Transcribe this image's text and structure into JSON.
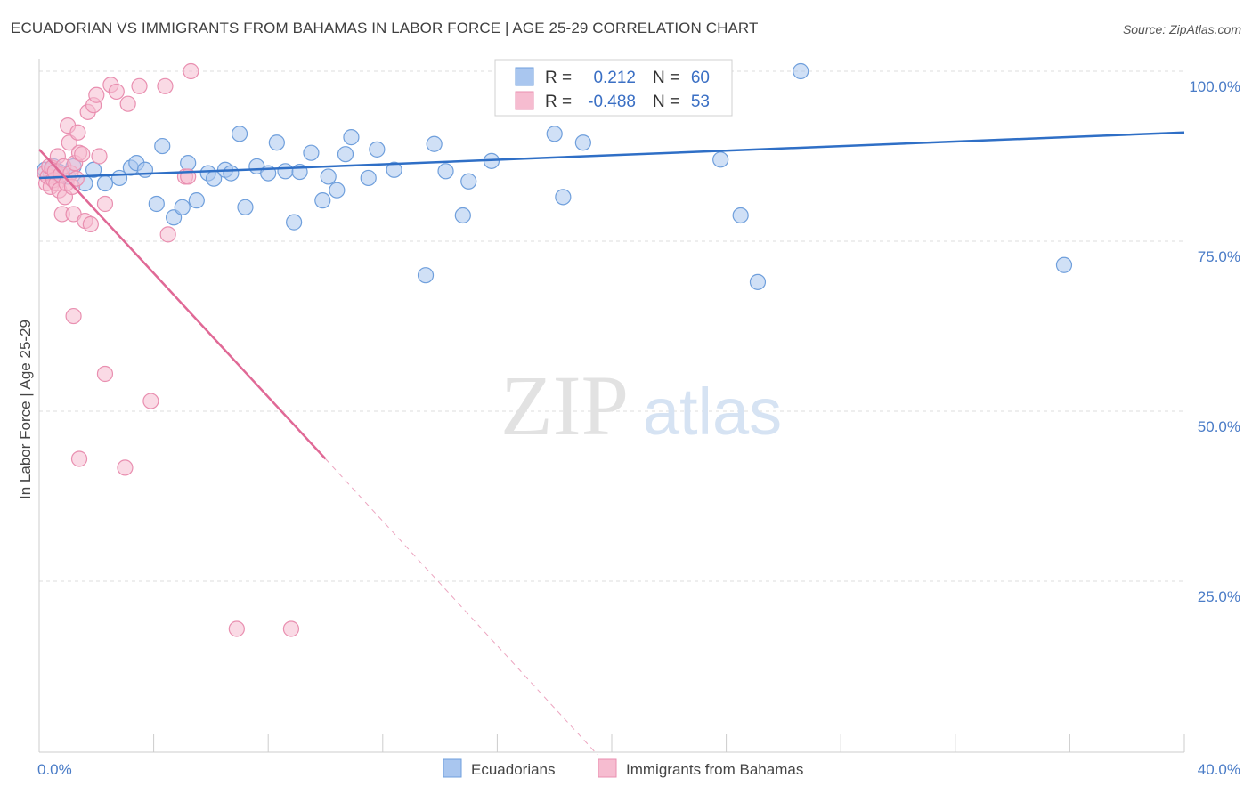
{
  "header": {
    "title": "ECUADORIAN VS IMMIGRANTS FROM BAHAMAS IN LABOR FORCE | AGE 25-29 CORRELATION CHART",
    "source": "Source: ZipAtlas.com"
  },
  "watermark": {
    "zip": "ZIP",
    "atlas": "atlas"
  },
  "colors": {
    "blue_fill": "#a9c6ef",
    "blue_stroke": "#6f9fdc",
    "blue_line": "#2f6fc6",
    "pink_fill": "#f6bcd0",
    "pink_stroke": "#e98fb0",
    "pink_line": "#e06996",
    "grid": "#dddddd",
    "tick_text": "#4a7cc7"
  },
  "stats": {
    "series": [
      {
        "r_label": "R =",
        "r_value": "0.212",
        "n_label": "N =",
        "n_value": "60"
      },
      {
        "r_label": "R =",
        "r_value": "-0.488",
        "n_label": "N =",
        "n_value": "53"
      }
    ]
  },
  "chart_data": {
    "type": "scatter",
    "title": "ECUADORIAN VS IMMIGRANTS FROM BAHAMAS IN LABOR FORCE | AGE 25-29 CORRELATION CHART",
    "xlabel": "",
    "ylabel": "In Labor Force | Age 25-29",
    "xlim": [
      0,
      40
    ],
    "ylim": [
      0,
      105
    ],
    "x_tick_labels": [
      {
        "value": 0,
        "label": "0.0%"
      },
      {
        "value": 40,
        "label": "40.0%"
      }
    ],
    "y_tick_labels": [
      {
        "value": 100,
        "label": "100.0%"
      },
      {
        "value": 75,
        "label": "75.0%"
      },
      {
        "value": 50,
        "label": "50.0%"
      },
      {
        "value": 25,
        "label": "25.0%"
      }
    ],
    "grid": true,
    "legend_position": "bottom-center",
    "series": [
      {
        "name": "Ecuadorians",
        "color": "#a9c6ef",
        "points": [
          [
            0.2,
            85.5
          ],
          [
            0.4,
            84.8
          ],
          [
            0.5,
            86.0
          ],
          [
            0.6,
            85.0
          ],
          [
            0.7,
            85.2
          ],
          [
            1.0,
            84.5
          ],
          [
            1.2,
            86.0
          ],
          [
            1.6,
            83.5
          ],
          [
            1.9,
            85.5
          ],
          [
            2.3,
            83.5
          ],
          [
            2.8,
            84.3
          ],
          [
            3.2,
            85.8
          ],
          [
            3.4,
            86.5
          ],
          [
            3.7,
            85.5
          ],
          [
            4.1,
            80.5
          ],
          [
            4.3,
            89.0
          ],
          [
            4.7,
            78.5
          ],
          [
            5.0,
            80.0
          ],
          [
            5.2,
            86.5
          ],
          [
            5.5,
            81.0
          ],
          [
            5.9,
            85.0
          ],
          [
            6.1,
            84.2
          ],
          [
            6.5,
            85.5
          ],
          [
            6.7,
            85.0
          ],
          [
            7.0,
            90.8
          ],
          [
            7.2,
            80.0
          ],
          [
            7.6,
            86.0
          ],
          [
            8.0,
            85.0
          ],
          [
            8.3,
            89.5
          ],
          [
            8.6,
            85.3
          ],
          [
            8.9,
            77.8
          ],
          [
            9.1,
            85.2
          ],
          [
            9.5,
            88.0
          ],
          [
            9.9,
            81.0
          ],
          [
            10.1,
            84.5
          ],
          [
            10.4,
            82.5
          ],
          [
            10.7,
            87.8
          ],
          [
            10.9,
            90.3
          ],
          [
            11.5,
            84.3
          ],
          [
            11.8,
            88.5
          ],
          [
            12.4,
            85.5
          ],
          [
            13.5,
            70.0
          ],
          [
            13.8,
            89.3
          ],
          [
            14.2,
            85.3
          ],
          [
            14.8,
            78.8
          ],
          [
            15.0,
            83.8
          ],
          [
            15.8,
            86.8
          ],
          [
            17.0,
            100.0
          ],
          [
            18.0,
            90.8
          ],
          [
            18.3,
            81.5
          ],
          [
            19.0,
            89.5
          ],
          [
            22.2,
            100.0
          ],
          [
            22.6,
            100.0
          ],
          [
            23.8,
            87.0
          ],
          [
            24.5,
            78.8
          ],
          [
            25.1,
            69.0
          ],
          [
            26.6,
            100.0
          ],
          [
            35.8,
            71.5
          ]
        ]
      },
      {
        "name": "Immigrants from Bahamas",
        "color": "#f6bcd0",
        "points": [
          [
            0.2,
            85.0
          ],
          [
            0.25,
            83.5
          ],
          [
            0.3,
            84.5
          ],
          [
            0.35,
            86.0
          ],
          [
            0.4,
            83.0
          ],
          [
            0.45,
            85.8
          ],
          [
            0.5,
            84.0
          ],
          [
            0.55,
            85.2
          ],
          [
            0.6,
            83.5
          ],
          [
            0.65,
            87.5
          ],
          [
            0.7,
            82.5
          ],
          [
            0.75,
            84.8
          ],
          [
            0.8,
            79.0
          ],
          [
            0.85,
            86.0
          ],
          [
            0.9,
            81.5
          ],
          [
            0.95,
            83.5
          ],
          [
            1.0,
            92.0
          ],
          [
            1.05,
            89.5
          ],
          [
            1.1,
            85.0
          ],
          [
            1.15,
            83.0
          ],
          [
            1.2,
            79.0
          ],
          [
            1.25,
            86.5
          ],
          [
            1.3,
            84.2
          ],
          [
            1.35,
            91.0
          ],
          [
            1.4,
            88.0
          ],
          [
            1.5,
            87.8
          ],
          [
            1.6,
            78.0
          ],
          [
            1.7,
            94.0
          ],
          [
            1.8,
            77.5
          ],
          [
            1.9,
            95.0
          ],
          [
            2.0,
            96.5
          ],
          [
            2.1,
            87.5
          ],
          [
            2.3,
            80.5
          ],
          [
            2.5,
            98.0
          ],
          [
            2.7,
            97.0
          ],
          [
            3.1,
            95.2
          ],
          [
            3.5,
            97.8
          ],
          [
            1.2,
            64.0
          ],
          [
            2.3,
            55.5
          ],
          [
            3.9,
            51.5
          ],
          [
            1.4,
            43.0
          ],
          [
            3.0,
            41.7
          ],
          [
            4.4,
            97.8
          ],
          [
            4.5,
            76.0
          ],
          [
            5.1,
            84.5
          ],
          [
            5.2,
            84.5
          ],
          [
            5.3,
            100.0
          ],
          [
            6.9,
            18.0
          ],
          [
            8.8,
            18.0
          ]
        ]
      }
    ],
    "trendlines": [
      {
        "series": "Ecuadorians",
        "x": [
          0,
          40
        ],
        "y": [
          84.3,
          91.0
        ],
        "style": "solid"
      },
      {
        "series": "Immigrants from Bahamas",
        "x": [
          0,
          10.0
        ],
        "y": [
          88.5,
          43.0
        ],
        "style": "solid"
      },
      {
        "series": "Immigrants from Bahamas",
        "x": [
          10.0,
          19.5
        ],
        "y": [
          43.0,
          -0.5
        ],
        "style": "dashed"
      }
    ]
  }
}
